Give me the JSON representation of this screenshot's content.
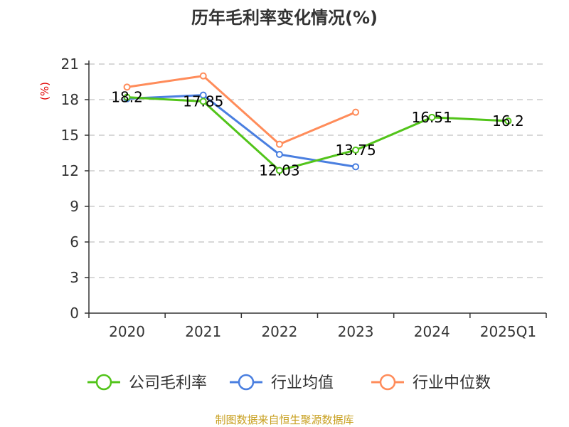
{
  "chart_data": {
    "type": "line",
    "title": "历年毛利率变化情况(%)",
    "ylabel": "(%)",
    "xlabel": "",
    "categories": [
      "2020",
      "2021",
      "2022",
      "2023",
      "2024",
      "2025Q1"
    ],
    "ylim": [
      0,
      21
    ],
    "yticks": [
      0,
      3,
      6,
      9,
      12,
      15,
      18,
      21
    ],
    "grid": true,
    "legend_position": "bottom",
    "series": [
      {
        "name": "公司毛利率",
        "color": "#52c41a",
        "values": [
          18.2,
          17.85,
          12.03,
          13.75,
          16.51,
          16.2
        ],
        "labels": [
          "18.2",
          "17.85",
          "12.03",
          "13.75",
          "16.51",
          "16.2"
        ]
      },
      {
        "name": "行业均值",
        "color": "#4a7fe0",
        "values": [
          18.08,
          18.38,
          13.38,
          12.34,
          null,
          null
        ]
      },
      {
        "name": "行业中位数",
        "color": "#ff8c5a",
        "values": [
          19.06,
          20.0,
          14.24,
          16.94,
          null,
          null
        ]
      }
    ]
  },
  "source": "制图数据来自恒生聚源数据库"
}
